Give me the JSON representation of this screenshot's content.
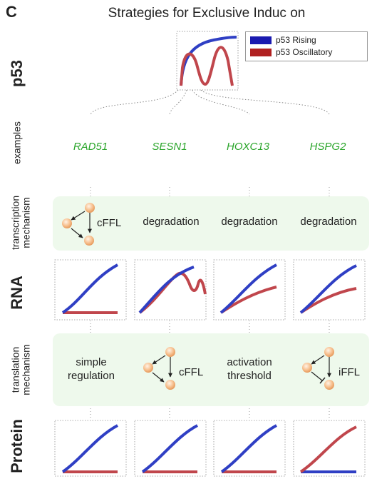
{
  "panel_letter": "C",
  "title": "Strategies for Exclusive Induc on",
  "row_labels": {
    "p53": "p53",
    "examples": "examples",
    "transcription": "transcription\nmechanism",
    "rna": "RNA",
    "translation": "translation\nmechanism",
    "protein": "Protein"
  },
  "legend": {
    "rising": "p53 Rising",
    "oscillatory": "p53 Oscillatory",
    "rising_color": "#2f3fc4",
    "oscillatory_color": "#c0464c"
  },
  "genes": [
    "RAD51",
    "SESN1",
    "HOXC13",
    "HSPG2"
  ],
  "transcription": {
    "col1": "cFFL",
    "col2": "degradation",
    "col3": "degradation",
    "col4": "degradation"
  },
  "translation": {
    "col1": "simple\nregulation",
    "col2": "cFFL",
    "col3": "activation\nthreshold",
    "col4": "iFFL"
  },
  "curves": {
    "rna": [
      "rising_flat",
      "rising_oscillating",
      "rising_damped",
      "rising_damped"
    ],
    "protein": [
      "rising_flat",
      "rising_flat",
      "rising_flat",
      "oscillatory_rising_flat"
    ]
  }
}
